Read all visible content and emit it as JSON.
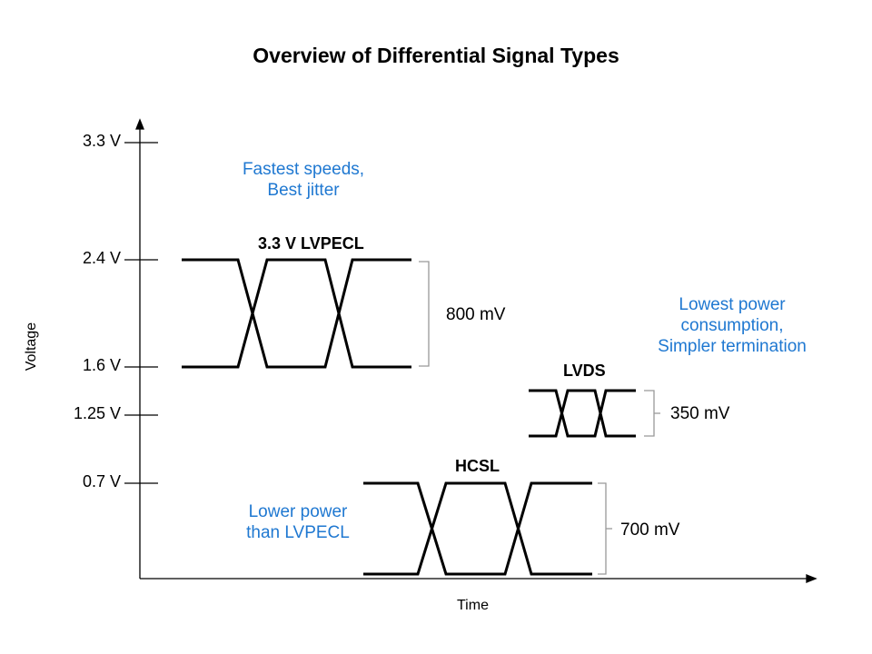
{
  "title": "Overview of Differential Signal Types",
  "axes": {
    "x_label": "Time",
    "y_label": "Voltage"
  },
  "y_ticks": [
    "3.3 V",
    "2.4 V",
    "1.6 V",
    "1.25 V",
    "0.7 V"
  ],
  "signals": [
    {
      "name": "3.3 V LVPECL",
      "swing": "800 mV",
      "note": [
        "Fastest speeds,",
        "Best jitter"
      ]
    },
    {
      "name": "LVDS",
      "swing": "350 mV",
      "note": [
        "Lowest power",
        "consumption,",
        "Simpler termination"
      ]
    },
    {
      "name": "HCSL",
      "swing": "700 mV",
      "note": [
        "Lower power",
        "than LVPECL"
      ]
    }
  ],
  "colors": {
    "note": "#1f78d1",
    "line": "#000000"
  }
}
